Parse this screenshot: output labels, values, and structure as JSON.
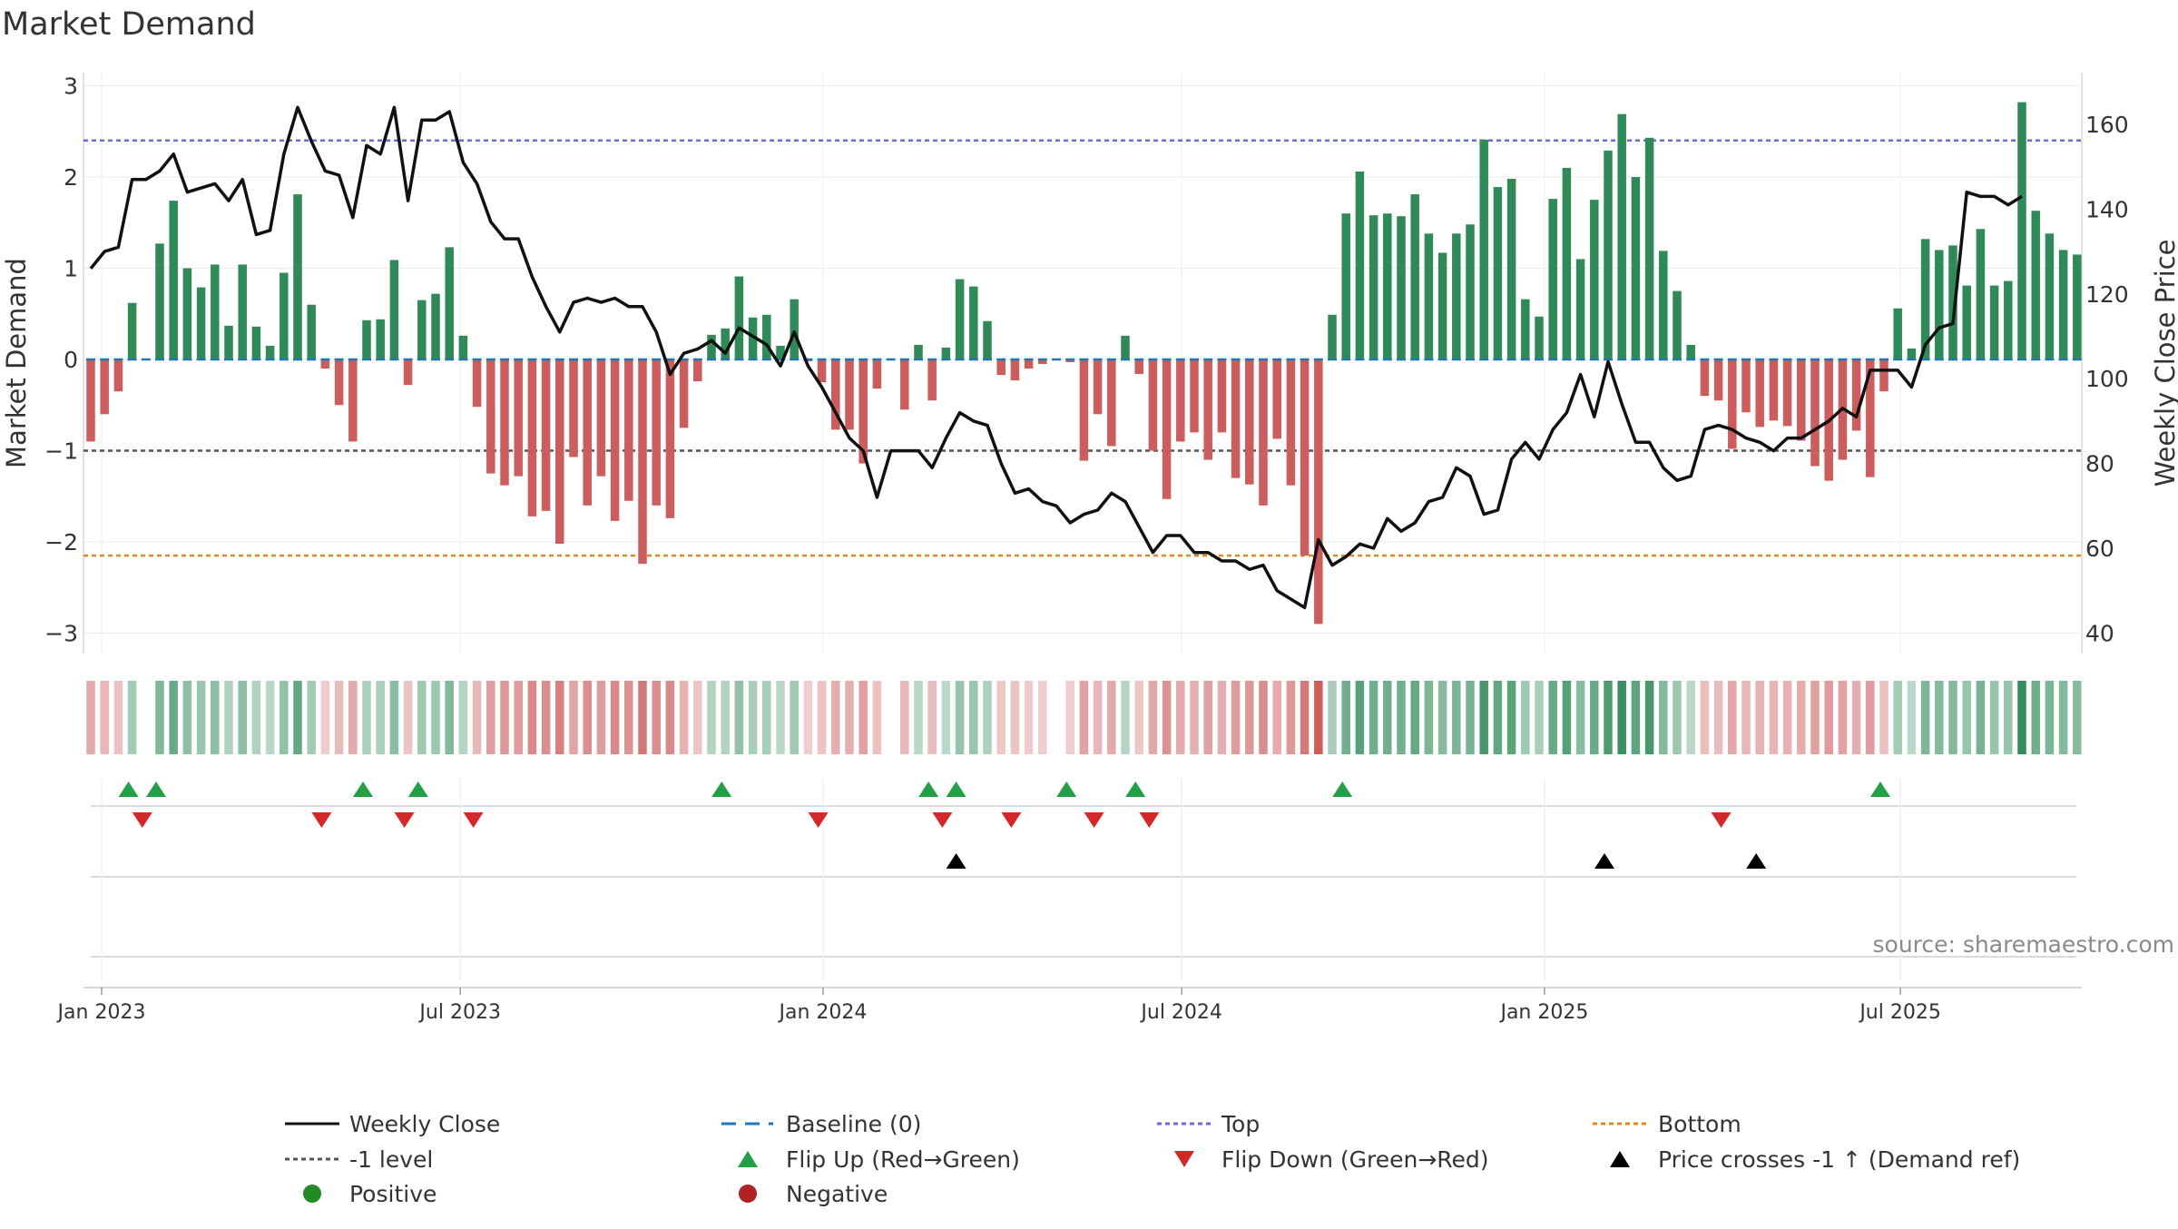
{
  "title": "Market Demand",
  "source": "source: sharemaestro.com",
  "y_left_label": "Market Demand",
  "y_right_label": "Weekly Close Price",
  "y_left_ticks": [
    3,
    2,
    1,
    0,
    -1,
    -2,
    -3
  ],
  "y_left_tick_labels": [
    "3",
    "2",
    "1",
    "0",
    "−1",
    "−2",
    "−3"
  ],
  "y_right_ticks": [
    160,
    140,
    120,
    100,
    80,
    60,
    40
  ],
  "y_right_tick_labels": [
    "160",
    "140",
    "120",
    "100",
    "80",
    "60",
    "40"
  ],
  "x_ticks": [
    {
      "label": "Jan 2023",
      "week": 0
    },
    {
      "label": "Jul 2023",
      "week": 26
    },
    {
      "label": "Jan 2024",
      "week": 52.3
    },
    {
      "label": "Jul 2024",
      "week": 78.3
    },
    {
      "label": "Jan 2025",
      "week": 104.6
    },
    {
      "label": "Jul 2025",
      "week": 130.4
    }
  ],
  "legend": {
    "weekly_close": "Weekly Close",
    "baseline": "Baseline (0)",
    "top": "Top",
    "bottom": "Bottom",
    "minus_one": "-1 level",
    "flip_up": "Flip Up (Red→Green)",
    "flip_down": "Flip Down (Green→Red)",
    "price_cross": "Price crosses -1 ↑ (Demand ref)",
    "positive": "Positive",
    "negative": "Negative"
  },
  "colors": {
    "positive": "#2e8b57",
    "negative": "#cd5c5c",
    "price": "#111111",
    "top": "#6a6ad8",
    "bottom": "#e08a1e",
    "minus_one": "#555555",
    "baseline": "#1f77b4",
    "flip_up": "#22a045",
    "flip_down": "#d62728",
    "price_cross": "#000000",
    "positive_legend": "#228b22",
    "negative_legend": "#b22222"
  },
  "chart_data": {
    "type": "bar",
    "title": "Market Demand",
    "xlabel": "",
    "ylabel": "Market Demand",
    "y2label": "Weekly Close Price",
    "ylim": [
      -3.2,
      3.1
    ],
    "y2lim": [
      37,
      167
    ],
    "x_start": "Jan 2023 (first week)",
    "series": [
      {
        "name": "Market Demand",
        "type": "bar",
        "values": [
          -0.9,
          -0.6,
          -0.35,
          0.62,
          0,
          1.27,
          1.74,
          1.0,
          0.79,
          1.04,
          0.37,
          1.04,
          0.36,
          0.15,
          0.95,
          1.81,
          0.6,
          -0.1,
          -0.5,
          -0.9,
          0.43,
          0.44,
          1.09,
          -0.28,
          0.65,
          0.72,
          1.23,
          0.26,
          -0.52,
          -1.25,
          -1.38,
          -1.28,
          -1.72,
          -1.66,
          -2.02,
          -1.07,
          -1.6,
          -1.28,
          -1.77,
          -1.55,
          -2.24,
          -1.6,
          -1.74,
          -0.75,
          -0.24,
          0.27,
          0.34,
          0.91,
          0.46,
          0.49,
          0.15,
          0.66,
          -0.02,
          -0.25,
          -0.77,
          -0.77,
          -1.14,
          -0.32,
          0,
          -0.55,
          0.16,
          -0.45,
          0.13,
          0.88,
          0.8,
          0.42,
          -0.17,
          -0.23,
          -0.1,
          -0.05,
          0,
          -0.03,
          -1.11,
          -0.6,
          -0.95,
          0.26,
          -0.16,
          -1.0,
          -1.53,
          -0.9,
          -0.8,
          -1.1,
          -0.8,
          -1.3,
          -1.37,
          -1.6,
          -0.87,
          -1.38,
          -2.15,
          -2.9,
          0.49,
          1.6,
          2.06,
          1.58,
          1.6,
          1.57,
          1.81,
          1.38,
          1.17,
          1.38,
          1.48,
          2.41,
          1.89,
          1.98,
          0.66,
          0.47,
          1.76,
          2.1,
          1.1,
          1.75,
          2.29,
          2.69,
          2.0,
          2.43,
          1.19,
          0.75,
          0.16,
          -0.4,
          -0.45,
          -0.98,
          -0.58,
          -0.74,
          -0.67,
          -0.73,
          -0.89,
          -1.17,
          -1.33,
          -1.1,
          -0.78,
          -1.29,
          -0.35,
          0.56,
          0.12,
          1.32,
          1.2,
          1.25,
          0.81,
          1.43,
          0.81,
          0.86,
          2.82,
          1.63,
          1.38,
          1.2,
          1.15
        ]
      },
      {
        "name": "Weekly Close",
        "type": "line",
        "axis": "right",
        "values": [
          126,
          130,
          131,
          147,
          147,
          149,
          153,
          144,
          145,
          146,
          142,
          147,
          134,
          135,
          153,
          164,
          156,
          149,
          148,
          138,
          155,
          153,
          164,
          142,
          161,
          161,
          163,
          151,
          146,
          137,
          133,
          133,
          124,
          117,
          111,
          118,
          119,
          118,
          119,
          117,
          117,
          111,
          101,
          106,
          107,
          109,
          106,
          112,
          110,
          108,
          103,
          111,
          103,
          98,
          92,
          86,
          83,
          72,
          83,
          83,
          83,
          79,
          86,
          92,
          90,
          89,
          80,
          73,
          74,
          71,
          70,
          66,
          68,
          69,
          73,
          71,
          65,
          59,
          63,
          63,
          59,
          59,
          57,
          57,
          55,
          56,
          50,
          48,
          46,
          62,
          56,
          58,
          61,
          60,
          67,
          64,
          66,
          71,
          72,
          79,
          77,
          68,
          69,
          81,
          85,
          81,
          88,
          92,
          101,
          91,
          104,
          94,
          85,
          85,
          79,
          76,
          77,
          88,
          89,
          88,
          86,
          85,
          83,
          86,
          86,
          88,
          90,
          93,
          91,
          102,
          102,
          102,
          98,
          108,
          112,
          113,
          144,
          143,
          143,
          141,
          143
        ]
      }
    ],
    "reference_lines": [
      {
        "name": "Top",
        "axis": "left",
        "value": 2.4
      },
      {
        "name": "Bottom",
        "axis": "left",
        "value": -2.15
      },
      {
        "name": "-1 level",
        "axis": "left",
        "value": -1.0
      },
      {
        "name": "Baseline (0)",
        "axis": "left",
        "value": 0
      }
    ],
    "flip_up_weeks": [
      3,
      5,
      20,
      24,
      46,
      61,
      63,
      71,
      76,
      91,
      130
    ],
    "flip_down_weeks": [
      4,
      17,
      23,
      28,
      53,
      62,
      67,
      73,
      77
    ],
    "flip_down_weeks_2": [
      118
    ],
    "price_cross_weeks": [
      63,
      110,
      121
    ],
    "legend_position": "bottom"
  }
}
